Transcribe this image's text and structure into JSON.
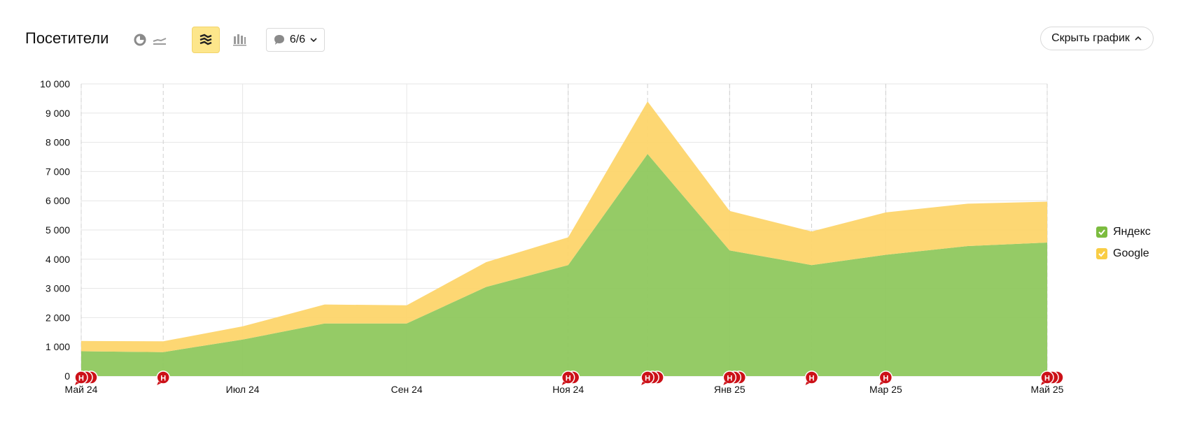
{
  "header": {
    "title": "Посетители",
    "notes_filter": "6/6",
    "hide_button": "Скрыть график",
    "views": [
      {
        "icon": "pie-chart-icon",
        "active": false
      },
      {
        "icon": "line-chart-icon",
        "active": false
      },
      {
        "icon": "stacked-area-icon",
        "active": true
      },
      {
        "icon": "stacked-bar-icon",
        "active": false
      }
    ]
  },
  "colors": {
    "yandex": "#8fc85e",
    "google": "#fdd56b",
    "note_marker": "#cc1118"
  },
  "note_marker_label": "Н",
  "chart_data": {
    "type": "area",
    "stacked": true,
    "title": "",
    "x": [
      "2024-05-01",
      "2024-06-01",
      "2024-07-01",
      "2024-08-01",
      "2024-09-01",
      "2024-10-01",
      "2024-11-01",
      "2024-12-01",
      "2025-01-01",
      "2025-02-01",
      "2025-03-01",
      "2025-04-01",
      "2025-05-01"
    ],
    "x_tick_labels": [
      "Май 24",
      "Июл 24",
      "Сен 24",
      "Ноя 24",
      "Янв 25",
      "Мар 25",
      "Май 25"
    ],
    "x_tick_dates": [
      "2024-05-01",
      "2024-07-01",
      "2024-09-01",
      "2024-11-01",
      "2025-01-01",
      "2025-03-01",
      "2025-05-01"
    ],
    "y_tick_labels": [
      "0",
      "1 000",
      "2 000",
      "3 000",
      "4 000",
      "5 000",
      "6 000",
      "7 000",
      "8 000",
      "9 000",
      "10 000"
    ],
    "ylim": [
      0,
      10000
    ],
    "grid": true,
    "legend_position": "right",
    "series": [
      {
        "name": "Яндекс",
        "color": "#8fc85e",
        "values": [
          850,
          820,
          1250,
          1800,
          1800,
          3050,
          3800,
          7600,
          4300,
          3800,
          4150,
          4450,
          4570
        ]
      },
      {
        "name": "Google",
        "color": "#fdd56b",
        "values": [
          350,
          370,
          450,
          650,
          620,
          850,
          950,
          1800,
          1350,
          1150,
          1450,
          1450,
          1400
        ]
      }
    ],
    "annotations": [
      {
        "date": "2024-05-01",
        "count": 3
      },
      {
        "date": "2024-06-01",
        "count": 1
      },
      {
        "date": "2024-11-01",
        "count": 2
      },
      {
        "date": "2024-12-01",
        "count": 3
      },
      {
        "date": "2025-01-01",
        "count": 3
      },
      {
        "date": "2025-02-01",
        "count": 1
      },
      {
        "date": "2025-03-01",
        "count": 1
      },
      {
        "date": "2025-05-01",
        "count": 3
      }
    ]
  }
}
